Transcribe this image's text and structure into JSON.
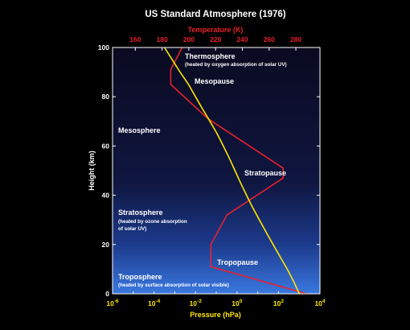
{
  "chart_data": {
    "type": "line",
    "title": "US Standard Atmosphere (1976)",
    "top_xlabel": "Temperature (K)",
    "bottom_xlabel": "Pressure (hPa)",
    "ylabel": "Height (km)",
    "ylim": [
      0,
      100
    ],
    "yticks": [
      "0",
      "20",
      "40",
      "60",
      "80",
      "100"
    ],
    "temperature_axis": {
      "lim": [
        143,
        298
      ],
      "ticks": [
        160,
        180,
        200,
        220,
        240,
        260,
        280
      ],
      "tick_labels": [
        "160",
        "180",
        "200",
        "220",
        "240",
        "260",
        "280"
      ]
    },
    "pressure_axis": {
      "scale": "log",
      "lim": [
        1e-06,
        10000
      ],
      "ticks": [
        1e-06,
        0.0001,
        0.01,
        1,
        100,
        10000
      ],
      "tick_labels": [
        {
          "base": "10",
          "exp": "-6"
        },
        {
          "base": "10",
          "exp": "-4"
        },
        {
          "base": "10",
          "exp": "-2"
        },
        {
          "base": "10",
          "exp": "0"
        },
        {
          "base": "10",
          "exp": "2"
        },
        {
          "base": "10",
          "exp": "4"
        }
      ]
    },
    "series": [
      {
        "name": "Temperature",
        "color": "#e8212b",
        "axis": "top",
        "points": [
          [
            288,
            0
          ],
          [
            216.5,
            11
          ],
          [
            216.5,
            20
          ],
          [
            228.5,
            32
          ],
          [
            270.5,
            47
          ],
          [
            270.5,
            51
          ],
          [
            214.5,
            71
          ],
          [
            186.5,
            85
          ],
          [
            186.5,
            91
          ],
          [
            195,
            100
          ]
        ]
      },
      {
        "name": "Pressure",
        "color": "#ffe600",
        "axis": "bottom",
        "points": [
          [
            1013,
            0
          ],
          [
            540,
            5
          ],
          [
            265,
            10
          ],
          [
            121,
            15
          ],
          [
            55,
            20
          ],
          [
            25.5,
            25
          ],
          [
            12,
            30
          ],
          [
            5.7,
            35
          ],
          [
            2.9,
            40
          ],
          [
            1.5,
            45
          ],
          [
            0.8,
            50
          ],
          [
            0.43,
            55
          ],
          [
            0.22,
            60
          ],
          [
            0.11,
            65
          ],
          [
            0.05,
            70
          ],
          [
            0.022,
            75
          ],
          [
            0.01,
            80
          ],
          [
            0.0046,
            85
          ],
          [
            0.0018,
            90
          ],
          [
            0.00076,
            95
          ],
          [
            0.00032,
            100
          ]
        ]
      }
    ],
    "annotations": [
      {
        "id": "thermosphere",
        "big": "Thermosphere",
        "small": [
          "(heated by oxygen absorption of solar UV)"
        ]
      },
      {
        "id": "mesopause",
        "big": "Mesopause",
        "small": []
      },
      {
        "id": "mesosphere",
        "big": "Mesosphere",
        "small": []
      },
      {
        "id": "stratopause",
        "big": "Stratopause",
        "small": []
      },
      {
        "id": "stratosphere",
        "big": "Stratosphere",
        "small": [
          "(heated by ozone absorption",
          "of solar UV)"
        ]
      },
      {
        "id": "tropopause",
        "big": "Tropopause",
        "small": []
      },
      {
        "id": "troposphere",
        "big": "Troposphere",
        "small": [
          "(heated by surface absorption of solar visible)"
        ]
      }
    ],
    "colors": {
      "temperature": "#e8212b",
      "pressure": "#ffe600",
      "background_top": "#0a0a22",
      "background_bottom": "#2f6ad6"
    }
  }
}
